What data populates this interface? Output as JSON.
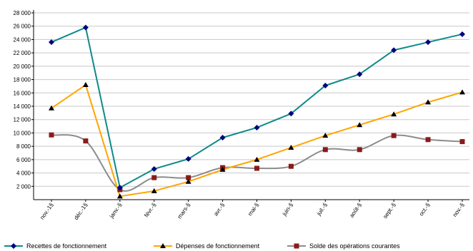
{
  "chart_data": {
    "type": "line",
    "categories": [
      "nov.-1§",
      "déc.-1§",
      "janv.-§",
      "févr.-§",
      "mars-§",
      "avr.-§",
      "mai-§",
      "juin-§",
      "juil.-§",
      "août-§",
      "sept.-§",
      "oct.-§",
      "nov.-§"
    ],
    "ylim": [
      0,
      28000
    ],
    "yticks": [
      "28 000",
      "26 000",
      "24 000",
      "22 000",
      "20 000",
      "18 000",
      "16 000",
      "14 000",
      "12 000",
      "10 000",
      "8 000",
      "6 000",
      "4 000",
      "2 000"
    ],
    "ytick_values": [
      28000,
      26000,
      24000,
      22000,
      20000,
      18000,
      16000,
      14000,
      12000,
      10000,
      8000,
      6000,
      4000,
      2000
    ],
    "grid": true,
    "legend_position": "bottom",
    "series": [
      {
        "name": "Recettes de fonctionnement",
        "color": "#0e8a8a",
        "marker": "diamond",
        "marker_color": "#000080",
        "smooth": false,
        "values": [
          23600,
          25800,
          1800,
          4600,
          6100,
          9300,
          10800,
          12900,
          17100,
          18800,
          22400,
          23600,
          24800
        ]
      },
      {
        "name": "Dépenses de fonctionnement",
        "color": "#ffa500",
        "marker": "triangle",
        "marker_color": "#000000",
        "smooth": false,
        "values": [
          13700,
          17200,
          500,
          1300,
          2700,
          4500,
          6000,
          7800,
          9600,
          11200,
          12800,
          14600,
          16100
        ]
      },
      {
        "name": "Solde des opérations courantes",
        "color": "#8c8c8c",
        "marker": "square",
        "marker_color": "#8b1a1a",
        "smooth": true,
        "values": [
          9700,
          8800,
          1500,
          3300,
          3300,
          4800,
          4700,
          5000,
          7500,
          7500,
          9600,
          9000,
          8700
        ]
      }
    ]
  }
}
